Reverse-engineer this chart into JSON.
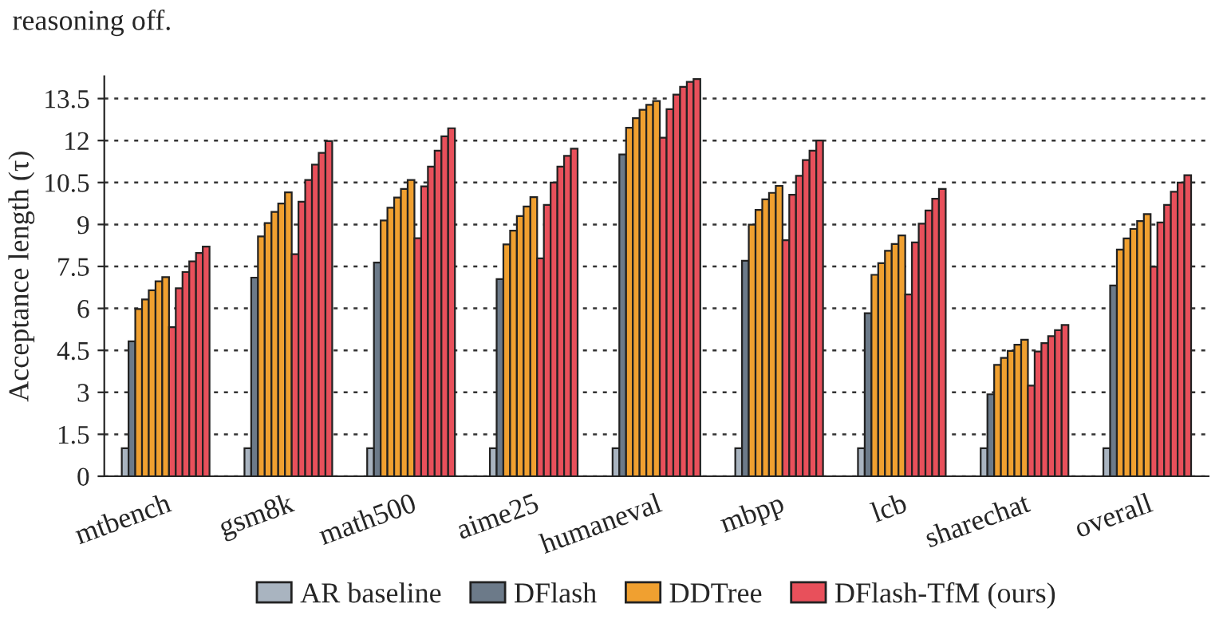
{
  "chart_data": {
    "type": "bar",
    "ylabel": "Acceptance length (τ)",
    "annotations": [
      "reasoning off."
    ],
    "categories": [
      "mtbench",
      "gsm8k",
      "math500",
      "aime25",
      "humaneval",
      "mbpp",
      "lcb",
      "sharechat",
      "overall"
    ],
    "series": [
      {
        "name": "AR baseline",
        "color": "#a9b4c0",
        "values": [
          1.0,
          1.0,
          1.0,
          1.0,
          1.0,
          1.0,
          1.0,
          1.0,
          1.0
        ]
      },
      {
        "name": "DFlash",
        "color": "#6c7a89",
        "values": [
          4.82,
          7.1,
          7.64,
          7.05,
          11.5,
          7.7,
          5.83,
          2.93,
          6.82
        ]
      },
      {
        "name": "DDTree",
        "color": "#f0a030",
        "values": [
          5.98,
          8.57,
          9.14,
          8.29,
          12.46,
          8.99,
          7.2,
          3.98,
          8.1
        ]
      },
      {
        "color": "#f0a030",
        "values": [
          6.32,
          9.05,
          9.6,
          8.78,
          12.8,
          9.52,
          7.62,
          4.23,
          8.5
        ]
      },
      {
        "color": "#f0a030",
        "values": [
          6.65,
          9.45,
          9.96,
          9.3,
          13.1,
          9.9,
          8.06,
          4.48,
          8.84
        ]
      },
      {
        "color": "#f0a030",
        "values": [
          6.97,
          9.75,
          10.27,
          9.64,
          13.28,
          10.13,
          8.3,
          4.7,
          9.12
        ]
      },
      {
        "color": "#f0a030",
        "values": [
          7.12,
          10.15,
          10.59,
          9.98,
          13.41,
          10.38,
          8.61,
          4.88,
          9.37
        ]
      },
      {
        "name": "DFlash-TfM (ours)",
        "color": "#e8505b",
        "values": [
          5.33,
          7.94,
          8.51,
          7.79,
          12.1,
          8.44,
          6.5,
          3.24,
          7.49
        ]
      },
      {
        "color": "#e8505b",
        "values": [
          6.72,
          9.81,
          10.36,
          9.7,
          13.12,
          10.06,
          8.36,
          4.46,
          9.07
        ]
      },
      {
        "color": "#e8505b",
        "values": [
          7.3,
          10.59,
          11.07,
          10.5,
          13.64,
          10.74,
          9.03,
          4.76,
          9.7
        ]
      },
      {
        "color": "#e8505b",
        "values": [
          7.68,
          11.14,
          11.64,
          11.07,
          13.92,
          11.3,
          9.5,
          5.01,
          10.17
        ]
      },
      {
        "color": "#e8505b",
        "values": [
          7.98,
          11.56,
          12.15,
          11.45,
          14.1,
          11.64,
          9.92,
          5.22,
          10.5
        ]
      },
      {
        "color": "#e8505b",
        "values": [
          8.21,
          11.98,
          12.44,
          11.71,
          14.2,
          12.0,
          10.27,
          5.41,
          10.76
        ]
      }
    ],
    "ylim": [
      0,
      14.3
    ],
    "yticks": [
      0,
      1.5,
      3,
      4.5,
      6,
      7.5,
      9,
      10.5,
      12,
      13.5
    ],
    "grid": "y",
    "legend": "bottom"
  }
}
